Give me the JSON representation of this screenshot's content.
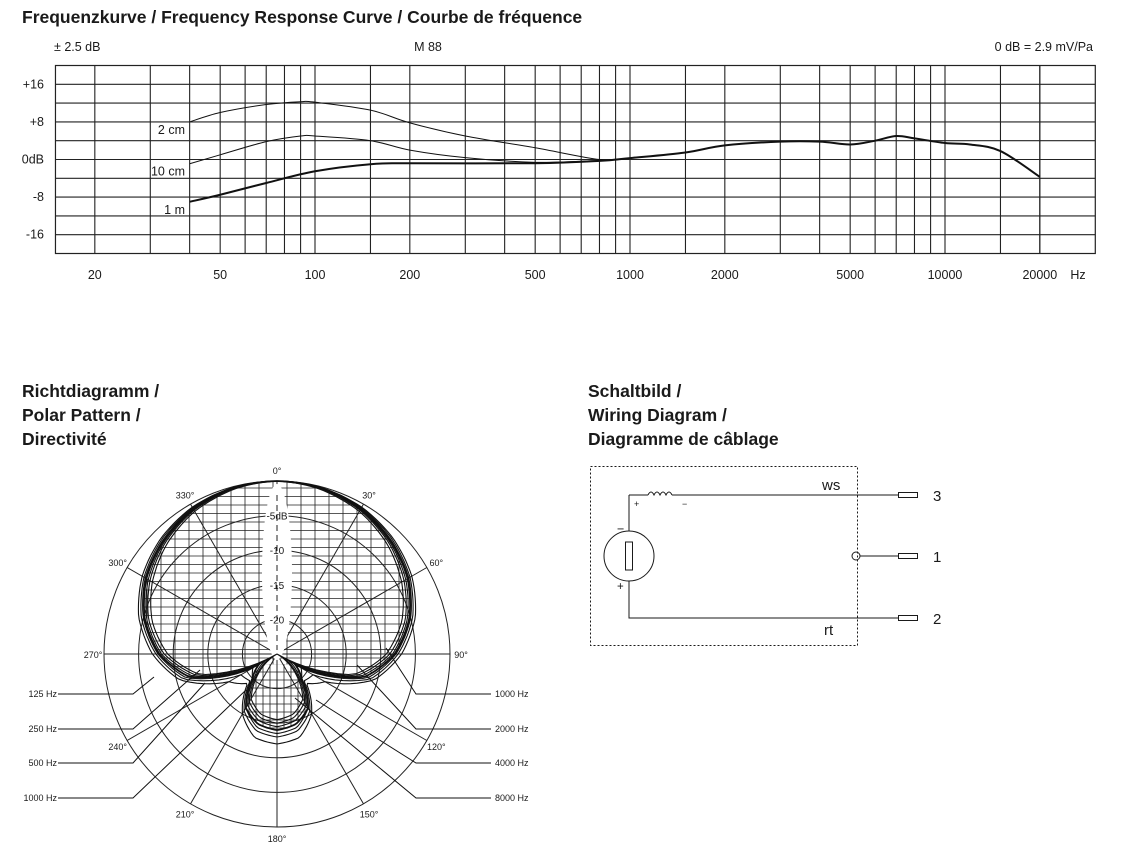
{
  "freq_section": {
    "title": "Frequenzkurve / Frequency Response Curve / Courbe de fréquence",
    "tolerance": "± 2.5 dB",
    "model": "M 88",
    "reference": "0 dB = 2.9 mV/Pa"
  },
  "polar_section": {
    "title_lines": [
      "Richtdiagramm /",
      "Polar Pattern /",
      "Directivité"
    ]
  },
  "wiring_section": {
    "title_lines": [
      "Schaltbild /",
      "Wiring Diagram /",
      "Diagramme de câblage"
    ],
    "wire_top_label": "ws",
    "wire_bottom_label": "rt",
    "pin_top": "3",
    "pin_middle": "1",
    "pin_bottom": "2",
    "coil_plus": "+",
    "coil_minus": "−",
    "capsule_minus": "−",
    "capsule_plus": "+"
  },
  "chart_data": [
    {
      "type": "line",
      "x_scale": "log",
      "xlim": [
        15,
        30000
      ],
      "ylim": [
        -20,
        20
      ],
      "grid": true,
      "xunit": "Hz",
      "xticks": [
        20,
        50,
        100,
        200,
        500,
        1000,
        2000,
        5000,
        10000,
        20000
      ],
      "xtick_labels": [
        "20",
        "50",
        "100",
        "200",
        "500",
        "1000",
        "2000",
        "5000",
        "10000",
        "20000"
      ],
      "yticks": [
        16,
        8,
        0,
        -8,
        -16
      ],
      "ytick_labels": [
        "+16",
        "+8",
        "0dB",
        "-8",
        "-16"
      ],
      "series": [
        {
          "name": "2 cm",
          "weight": "thin",
          "points": [
            [
              40,
              8
            ],
            [
              50,
              10
            ],
            [
              70,
              11.7
            ],
            [
              90,
              12.3
            ],
            [
              100,
              12.2
            ],
            [
              150,
              10.5
            ],
            [
              200,
              7.8
            ],
            [
              300,
              5
            ],
            [
              500,
              2.5
            ],
            [
              800,
              0
            ],
            [
              1000,
              0.3
            ]
          ]
        },
        {
          "name": "10 cm",
          "weight": "thin",
          "points": [
            [
              40,
              -0.9
            ],
            [
              50,
              1
            ],
            [
              70,
              3.8
            ],
            [
              90,
              5
            ],
            [
              100,
              5
            ],
            [
              150,
              4
            ],
            [
              200,
              2
            ],
            [
              300,
              0.4
            ],
            [
              500,
              -0.6
            ],
            [
              800,
              -0.2
            ],
            [
              1000,
              0.3
            ]
          ]
        },
        {
          "name": "1 m",
          "weight": "bold",
          "points": [
            [
              40,
              -9
            ],
            [
              50,
              -7.5
            ],
            [
              70,
              -5
            ],
            [
              100,
              -2.5
            ],
            [
              150,
              -1
            ],
            [
              200,
              -0.8
            ],
            [
              500,
              -0.8
            ],
            [
              800,
              -0.3
            ],
            [
              1000,
              0.3
            ],
            [
              1500,
              1.5
            ],
            [
              2000,
              3
            ],
            [
              3000,
              3.8
            ],
            [
              4000,
              3.8
            ],
            [
              5000,
              3.2
            ],
            [
              6000,
              4
            ],
            [
              7000,
              5
            ],
            [
              8000,
              4.5
            ],
            [
              10000,
              3.5
            ],
            [
              12000,
              3.2
            ],
            [
              15000,
              1.8
            ],
            [
              20000,
              -3.7
            ]
          ]
        }
      ]
    },
    {
      "type": "polar",
      "r_range_db": [
        -25,
        0
      ],
      "ring_labels": [
        "-5dB",
        "-10",
        "-15",
        "-20"
      ],
      "angle_labels": [
        "0°",
        "30°",
        "60°",
        "90°",
        "120°",
        "150°",
        "180°",
        "210°",
        "240°",
        "270°",
        "300°",
        "330°"
      ],
      "angles_deg": [
        0,
        15,
        30,
        45,
        60,
        75,
        90,
        105,
        120,
        135,
        150,
        165,
        180
      ],
      "symmetric": true,
      "series": [
        {
          "name": "125 Hz",
          "side": "left",
          "db": [
            0,
            -0.1,
            -0.5,
            -1.3,
            -2.5,
            -4.3,
            -7,
            -10.5,
            -17,
            -19,
            -15,
            -12.5,
            -12
          ]
        },
        {
          "name": "250 Hz",
          "side": "left",
          "db": [
            0,
            -0.1,
            -0.6,
            -1.5,
            -2.8,
            -4.7,
            -7.5,
            -11,
            -19,
            -19.5,
            -15.5,
            -13.5,
            -13
          ]
        },
        {
          "name": "500 Hz",
          "side": "left",
          "db": [
            0,
            -0.2,
            -0.7,
            -1.7,
            -3,
            -5,
            -7.8,
            -11.5,
            -21,
            -20,
            -16,
            -14,
            -13.5
          ]
        },
        {
          "name": "1000 Hz",
          "side": "left",
          "db": [
            0,
            -0.2,
            -0.8,
            -1.8,
            -3.2,
            -5.2,
            -8,
            -12,
            -22,
            -20,
            -16,
            -14.5,
            -14
          ]
        },
        {
          "name": "1000 Hz",
          "side": "right",
          "db": [
            0,
            -0.2,
            -0.8,
            -1.8,
            -3.2,
            -5.2,
            -8,
            -12,
            -22,
            -20,
            -16,
            -14.5,
            -14
          ]
        },
        {
          "name": "2000 Hz",
          "side": "right",
          "db": [
            0,
            -0.2,
            -0.9,
            -2,
            -3.5,
            -5.5,
            -8.3,
            -12.5,
            -23,
            -20.5,
            -16.5,
            -15,
            -14.5
          ]
        },
        {
          "name": "4000 Hz",
          "side": "right",
          "db": [
            0,
            -0.3,
            -1,
            -2.2,
            -3.8,
            -5.8,
            -8.7,
            -13,
            -24,
            -21,
            -17,
            -15.5,
            -15
          ]
        },
        {
          "name": "8000 Hz",
          "side": "right",
          "db": [
            0,
            -0.4,
            -1.2,
            -2.5,
            -4.2,
            -6.3,
            -9.2,
            -13.5,
            -25,
            -21.5,
            -17.5,
            -16,
            -15.5
          ]
        }
      ]
    }
  ]
}
